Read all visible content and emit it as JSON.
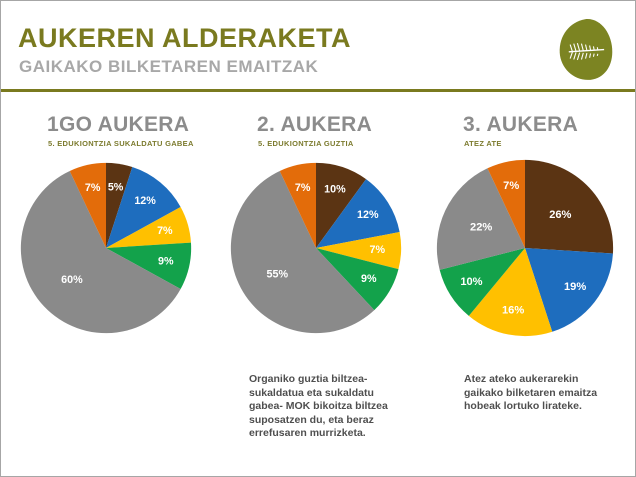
{
  "slide": {
    "title": "AUKEREN ALDERAKETA",
    "subtitle": "GAIKAKO BILKETAREN EMAITZAK",
    "logo_icon": "fern-leaf-logo",
    "accent_color": "#7a7a1f",
    "title_gray": "#8c8c8c"
  },
  "chart_data": [
    {
      "type": "pie",
      "title": "1GO AUKERA",
      "subtitle": "5. EDUKIONTZIA SUKALDATU GABEA",
      "start": "top",
      "direction": "clockwise",
      "values": [
        5,
        12,
        7,
        9,
        60,
        7
      ],
      "labels": [
        "5%",
        "12%",
        "7%",
        "9%",
        "60%",
        "7%"
      ],
      "colors": [
        "#5b3413",
        "#1e6dbe",
        "#ffc000",
        "#13a24b",
        "#8a8a8a",
        "#e36c0a"
      ]
    },
    {
      "type": "pie",
      "title": "2. AUKERA",
      "subtitle": "5. EDUKIONTZIA GUZTIA",
      "start": "top",
      "direction": "clockwise",
      "values": [
        10,
        12,
        7,
        9,
        55,
        7
      ],
      "labels": [
        "10%",
        "12%",
        "7%",
        "9%",
        "55%",
        "7%"
      ],
      "colors": [
        "#5b3413",
        "#1e6dbe",
        "#ffc000",
        "#13a24b",
        "#8a8a8a",
        "#e36c0a"
      ]
    },
    {
      "type": "pie",
      "title": "3. AUKERA",
      "subtitle": "ATEZ ATE",
      "start": "top",
      "direction": "clockwise",
      "values": [
        26,
        19,
        16,
        10,
        22,
        7
      ],
      "labels": [
        "26%",
        "19%",
        "16%",
        "10%",
        "22%",
        "7%"
      ],
      "colors": [
        "#5b3413",
        "#1e6dbe",
        "#ffc000",
        "#13a24b",
        "#8a8a8a",
        "#e36c0a"
      ]
    }
  ],
  "notes": {
    "note2": "Organiko guztia biltzea-\nsukaldatua eta sukaldatu\ngabea- MOK bikoitza biltzea\nsuposatzen du, eta beraz\nerrefusaren murrizketa.",
    "note3": "Atez ateko aukerarekin\ngaikako bilketaren emaitza\nhobeak lortuko lirateke."
  }
}
